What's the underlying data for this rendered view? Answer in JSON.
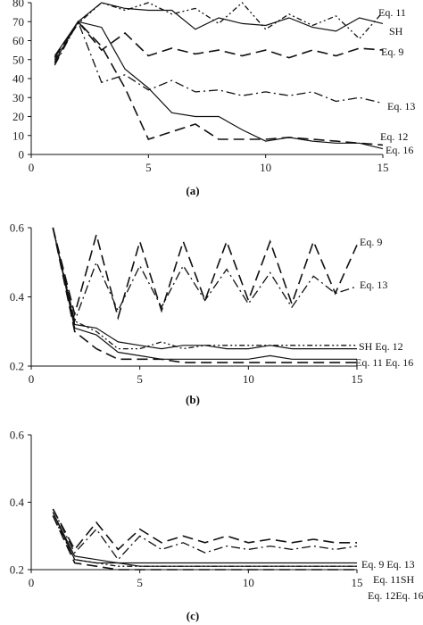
{
  "chart_data": [
    {
      "type": "line",
      "panel_label": "(a)",
      "xlim": [
        0,
        15
      ],
      "ylim": [
        0,
        80
      ],
      "x_ticks": [
        0,
        5,
        10,
        15
      ],
      "y_ticks": [
        0,
        10,
        20,
        30,
        40,
        50,
        60,
        70,
        80
      ],
      "x": [
        1,
        2,
        3,
        4,
        5,
        6,
        7,
        8,
        9,
        10,
        11,
        12,
        13,
        14,
        15
      ],
      "series": [
        {
          "name": "Eq. 11",
          "style": "dash-dot-dot",
          "values": [
            50,
            69,
            80,
            76,
            80,
            74,
            77,
            69,
            80,
            66,
            74,
            68,
            73,
            61,
            75
          ]
        },
        {
          "name": "SH",
          "style": "solid",
          "values": [
            49,
            70,
            80,
            77,
            76,
            76,
            66,
            72,
            69,
            68,
            72,
            67,
            65,
            72,
            69
          ]
        },
        {
          "name": "Eq. 9",
          "style": "long-dash",
          "values": [
            48,
            70,
            55,
            64,
            52,
            56,
            53,
            55,
            52,
            55,
            51,
            55,
            52,
            56,
            55
          ]
        },
        {
          "name": "Eq. 13",
          "style": "dash-dot",
          "values": [
            47,
            70,
            38,
            42,
            34,
            39,
            33,
            34,
            31,
            33,
            31,
            33,
            28,
            30,
            27
          ]
        },
        {
          "name": "Eq. 12",
          "style": "long-dash",
          "values": [
            51,
            70,
            57,
            35,
            8,
            12,
            16,
            8,
            8,
            8,
            9,
            8,
            7,
            6,
            5
          ]
        },
        {
          "name": "Eq. 16",
          "style": "solid",
          "values": [
            52,
            70,
            67,
            45,
            35,
            22,
            20,
            20,
            13,
            7,
            9,
            7,
            6,
            6,
            3
          ]
        }
      ]
    },
    {
      "type": "line",
      "panel_label": "(b)",
      "xlim": [
        0,
        15
      ],
      "ylim": [
        0.2,
        0.6
      ],
      "x_ticks": [
        0,
        5,
        10,
        15
      ],
      "y_ticks": [
        0.2,
        0.4,
        0.6
      ],
      "y_tick_labels": [
        "0.2",
        "0.4",
        "0.6"
      ],
      "x": [
        1,
        2,
        3,
        4,
        5,
        6,
        7,
        8,
        9,
        10,
        11,
        12,
        13,
        14,
        15
      ],
      "series": [
        {
          "name": "Eq. 9",
          "style": "long-dash",
          "values": [
            0.6,
            0.35,
            0.58,
            0.34,
            0.56,
            0.36,
            0.56,
            0.39,
            0.56,
            0.39,
            0.56,
            0.38,
            0.56,
            0.41,
            0.55
          ]
        },
        {
          "name": "Eq. 13",
          "style": "dash-dot",
          "values": [
            0.6,
            0.33,
            0.5,
            0.36,
            0.49,
            0.37,
            0.49,
            0.39,
            0.48,
            0.38,
            0.47,
            0.37,
            0.46,
            0.41,
            0.43
          ]
        },
        {
          "name": "SH",
          "style": "solid",
          "values": [
            0.6,
            0.32,
            0.31,
            0.27,
            0.26,
            0.25,
            0.26,
            0.26,
            0.25,
            0.25,
            0.26,
            0.25,
            0.25,
            0.25,
            0.25
          ]
        },
        {
          "name": "Eq. 12",
          "style": "dash-dot-dot",
          "values": [
            0.6,
            0.33,
            0.3,
            0.25,
            0.25,
            0.27,
            0.25,
            0.26,
            0.26,
            0.26,
            0.26,
            0.26,
            0.26,
            0.26,
            0.26
          ]
        },
        {
          "name": "Eq. 11",
          "style": "solid",
          "values": [
            0.6,
            0.31,
            0.29,
            0.24,
            0.23,
            0.22,
            0.22,
            0.22,
            0.22,
            0.22,
            0.23,
            0.22,
            0.22,
            0.22,
            0.22
          ]
        },
        {
          "name": "Eq. 16",
          "style": "long-dash",
          "values": [
            0.6,
            0.3,
            0.25,
            0.22,
            0.22,
            0.22,
            0.21,
            0.21,
            0.21,
            0.21,
            0.21,
            0.21,
            0.21,
            0.21,
            0.21
          ]
        }
      ]
    },
    {
      "type": "line",
      "panel_label": "(c)",
      "xlim": [
        0,
        15
      ],
      "ylim": [
        0.2,
        0.6
      ],
      "x_ticks": [
        0,
        5,
        10,
        15
      ],
      "y_ticks": [
        0.2,
        0.4,
        0.6
      ],
      "y_tick_labels": [
        "0.2",
        "0.4",
        "0.6"
      ],
      "x": [
        1,
        2,
        3,
        4,
        5,
        6,
        7,
        8,
        9,
        10,
        11,
        12,
        13,
        14,
        15
      ],
      "series": [
        {
          "name": "Eq. 9",
          "style": "long-dash",
          "values": [
            0.38,
            0.26,
            0.34,
            0.26,
            0.32,
            0.28,
            0.3,
            0.28,
            0.3,
            0.28,
            0.29,
            0.28,
            0.29,
            0.28,
            0.28
          ]
        },
        {
          "name": "Eq. 13",
          "style": "dash-dot",
          "values": [
            0.38,
            0.25,
            0.32,
            0.23,
            0.3,
            0.26,
            0.28,
            0.25,
            0.27,
            0.26,
            0.27,
            0.26,
            0.27,
            0.26,
            0.27
          ]
        },
        {
          "name": "Eq. 11",
          "style": "solid",
          "values": [
            0.37,
            0.24,
            0.23,
            0.22,
            0.22,
            0.22,
            0.22,
            0.22,
            0.22,
            0.22,
            0.22,
            0.22,
            0.22,
            0.22,
            0.22
          ]
        },
        {
          "name": "SH",
          "style": "solid",
          "values": [
            0.37,
            0.23,
            0.22,
            0.22,
            0.21,
            0.21,
            0.21,
            0.21,
            0.21,
            0.21,
            0.21,
            0.21,
            0.21,
            0.21,
            0.21
          ]
        },
        {
          "name": "Eq. 12",
          "style": "dash-dot-dot",
          "values": [
            0.36,
            0.23,
            0.22,
            0.21,
            0.21,
            0.21,
            0.21,
            0.21,
            0.21,
            0.21,
            0.21,
            0.21,
            0.21,
            0.21,
            0.21
          ]
        },
        {
          "name": "Eq. 16",
          "style": "long-dash",
          "values": [
            0.36,
            0.22,
            0.21,
            0.2,
            0.2,
            0.2,
            0.2,
            0.2,
            0.2,
            0.2,
            0.2,
            0.2,
            0.2,
            0.2,
            0.2
          ]
        }
      ]
    }
  ],
  "legend_labels": {
    "a": {
      "eq11": "Eq. 11",
      "sh": "SH",
      "eq9": "Eq. 9",
      "eq13": "Eq. 13",
      "eq12": "Eq. 12",
      "eq16": "Eq. 16"
    },
    "b": {
      "eq9": "Eq. 9",
      "eq13": "Eq. 13",
      "sh_eq12": "SH  Eq. 12",
      "eq11_eq16": "Eq. 11 Eq. 16"
    },
    "c": {
      "eq9_eq13": "Eq. 9  Eq. 13",
      "eq11_sh": "Eq. 11SH",
      "eq12_eq16": "Eq. 12Eq. 16"
    }
  }
}
